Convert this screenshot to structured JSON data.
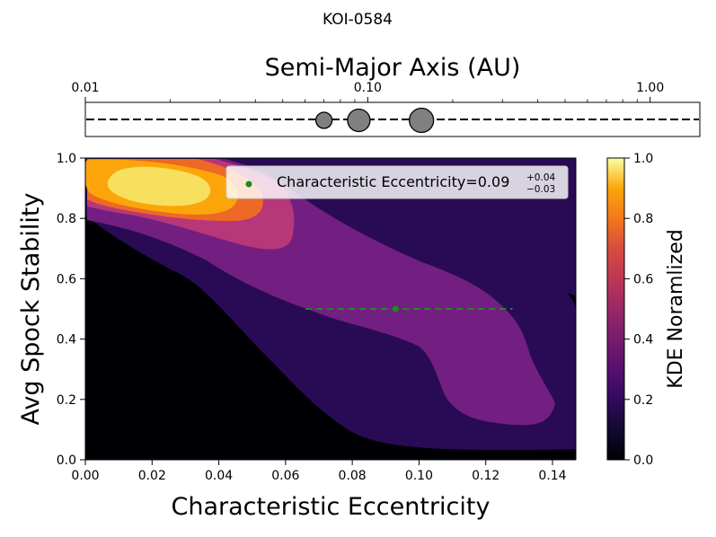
{
  "figure_title": "KOI-0584",
  "chart_data": [
    {
      "type": "scatter",
      "panel": "planet-architecture",
      "xlabel": "Semi-Major Axis (AU)",
      "xscale": "log",
      "xlim": [
        0.01,
        1.5
      ],
      "x_ticks": [
        0.01,
        0.1,
        1.0
      ],
      "x_tick_labels": [
        "0.01",
        "0.10",
        "1.00"
      ],
      "tick_position": "top",
      "points": [
        {
          "x": 0.07,
          "size": "small"
        },
        {
          "x": 0.093,
          "size": "medium"
        },
        {
          "x": 0.155,
          "size": "large"
        }
      ],
      "marker_color": "#808080",
      "line_style": "dashed"
    },
    {
      "type": "heatmap",
      "panel": "kde-contour",
      "xlabel": "Characteristic Eccentricity",
      "ylabel": "Avg Spock Stability",
      "xlim": [
        0.0,
        0.147
      ],
      "ylim": [
        0.0,
        1.0
      ],
      "x_ticks": [
        0.0,
        0.02,
        0.04,
        0.06,
        0.08,
        0.1,
        0.12,
        0.14
      ],
      "x_tick_labels": [
        "0.00",
        "0.02",
        "0.04",
        "0.06",
        "0.08",
        "0.10",
        "0.12",
        "0.14"
      ],
      "y_ticks": [
        0.0,
        0.2,
        0.4,
        0.6,
        0.8,
        1.0
      ],
      "y_tick_labels": [
        "0.0",
        "0.2",
        "0.4",
        "0.6",
        "0.8",
        "1.0"
      ],
      "contour_levels": [
        0.0,
        0.2,
        0.4,
        0.6,
        0.8,
        1.0
      ],
      "contour_colors": [
        "#000004",
        "#290b55",
        "#721f81",
        "#b73779",
        "#ed6925",
        "#fca50a",
        "#f6e05e"
      ],
      "colorbar": {
        "label": "KDE Noramlized",
        "ticks": [
          0.0,
          0.2,
          0.4,
          0.6,
          0.8,
          1.0
        ],
        "tick_labels": [
          "0.0",
          "0.2",
          "0.4",
          "0.6",
          "0.8",
          "1.0"
        ]
      },
      "estimate": {
        "x": 0.093,
        "y": 0.5,
        "x_err_low": 0.027,
        "x_err_high": 0.035,
        "color": "#1e8a1e",
        "value_text": "0.09",
        "plus_text": "+0.04",
        "minus_text": "−0.03"
      },
      "legend": {
        "label": "Characteristic Eccentricity=",
        "placement": "upper right"
      }
    }
  ]
}
